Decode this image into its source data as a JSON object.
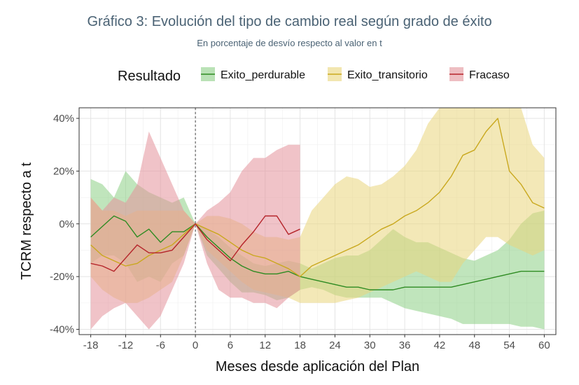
{
  "chart_data": {
    "type": "line",
    "title": "Gráfico 3: Evolución del tipo de cambio real según grado de éxito",
    "subtitle": "En porcentaje de desvío respecto al valor en t",
    "xlabel": "Meses desde aplicación del Plan",
    "ylabel": "TCRM respecto a t",
    "xlim": [
      -20,
      62
    ],
    "ylim": [
      -42,
      44
    ],
    "xticks": [
      -18,
      -12,
      -6,
      0,
      6,
      12,
      18,
      24,
      30,
      36,
      42,
      48,
      54,
      60
    ],
    "xtick_labels": [
      "-18",
      "-12",
      "-6",
      "0",
      "6",
      "12",
      "18",
      "24",
      "30",
      "36",
      "42",
      "48",
      "54",
      "60"
    ],
    "yticks": [
      -40,
      -20,
      0,
      20,
      40
    ],
    "ytick_labels": [
      "-40%",
      "-20%",
      "0%",
      "20%",
      "40%"
    ],
    "vline_x": 0,
    "legend_title": "Resultado",
    "legend_position": "top",
    "series": [
      {
        "name": "Exito_perdurable",
        "line_color": "#2e8b22",
        "band_color": "#8ccf85",
        "x": [
          -18,
          -16,
          -14,
          -12,
          -10,
          -8,
          -6,
          -4,
          -2,
          0,
          2,
          4,
          6,
          8,
          10,
          12,
          14,
          16,
          18,
          20,
          22,
          24,
          26,
          28,
          30,
          32,
          34,
          36,
          38,
          40,
          42,
          44,
          46,
          48,
          50,
          52,
          54,
          56,
          58,
          60
        ],
        "values": [
          -5,
          -1,
          3,
          1,
          -5,
          -2,
          -7,
          -3,
          -3,
          0,
          -5,
          -9,
          -13,
          -16,
          -18,
          -19,
          -19,
          -18,
          -20,
          -21,
          -22,
          -23,
          -24,
          -24,
          -25,
          -25,
          -25,
          -24,
          -24,
          -24,
          -24,
          -24,
          -23,
          -22,
          -21,
          -20,
          -19,
          -18,
          -18,
          -18
        ],
        "lower": [
          -15,
          -12,
          -12,
          -15,
          -22,
          -20,
          -22,
          -15,
          -12,
          0,
          -12,
          -17,
          -22,
          -26,
          -26,
          -27,
          -29,
          -28,
          -25,
          -24,
          -25,
          -27,
          -28,
          -28,
          -28,
          -28,
          -30,
          -32,
          -33,
          -34,
          -35,
          -36,
          -38,
          -38,
          -38,
          -38,
          -38,
          -39,
          -39,
          -40
        ],
        "upper": [
          17,
          15,
          10,
          20,
          15,
          12,
          10,
          8,
          10,
          0,
          -2,
          -5,
          -9,
          -12,
          -15,
          -16,
          -15,
          -14,
          -15,
          -17,
          -15,
          -13,
          -12,
          -12,
          -10,
          -6,
          -2,
          -5,
          -7,
          -7,
          -9,
          -11,
          -13,
          -14,
          -12,
          -10,
          -6,
          0,
          4,
          5
        ]
      },
      {
        "name": "Exito_transitorio",
        "line_color": "#c9a81e",
        "band_color": "#e9d57c",
        "x": [
          -18,
          -16,
          -14,
          -12,
          -10,
          -8,
          -6,
          -4,
          -2,
          0,
          2,
          4,
          6,
          8,
          10,
          12,
          14,
          16,
          18,
          20,
          22,
          24,
          26,
          28,
          30,
          32,
          34,
          36,
          38,
          40,
          42,
          44,
          46,
          48,
          50,
          52,
          54,
          56,
          58,
          60
        ],
        "values": [
          -8,
          -12,
          -14,
          -16,
          -15,
          -12,
          -10,
          -8,
          -4,
          0,
          -2,
          -4,
          -7,
          -10,
          -12,
          -13,
          -15,
          -17,
          -20,
          -16,
          -14,
          -12,
          -10,
          -8,
          -5,
          -2,
          0,
          3,
          5,
          8,
          12,
          18,
          26,
          28,
          35,
          40,
          20,
          15,
          8,
          6
        ],
        "lower": [
          -20,
          -25,
          -28,
          -30,
          -30,
          -28,
          -25,
          -22,
          -12,
          0,
          -10,
          -14,
          -18,
          -22,
          -25,
          -26,
          -27,
          -28,
          -30,
          -30,
          -30,
          -30,
          -29,
          -28,
          -26,
          -24,
          -22,
          -20,
          -18,
          -20,
          -22,
          -22,
          -15,
          -10,
          -5,
          -5,
          -8,
          -10,
          -12,
          -10
        ],
        "upper": [
          10,
          5,
          5,
          3,
          5,
          5,
          5,
          5,
          5,
          0,
          3,
          3,
          2,
          0,
          -3,
          -5,
          -5,
          -6,
          -5,
          5,
          10,
          15,
          18,
          17,
          14,
          15,
          18,
          22,
          28,
          38,
          44,
          44,
          44,
          44,
          44,
          44,
          44,
          44,
          30,
          25
        ]
      },
      {
        "name": "Fracaso",
        "line_color": "#b5242a",
        "band_color": "#e3929a",
        "x": [
          -18,
          -16,
          -14,
          -12,
          -10,
          -8,
          -6,
          -4,
          -2,
          0,
          2,
          4,
          6,
          8,
          10,
          12,
          14,
          16,
          18
        ],
        "values": [
          -15,
          -16,
          -18,
          -13,
          -8,
          -11,
          -11,
          -10,
          -5,
          0,
          -6,
          -10,
          -14,
          -8,
          -3,
          3,
          3,
          -4,
          -2
        ],
        "lower": [
          -40,
          -35,
          -32,
          -30,
          -35,
          -40,
          -35,
          -25,
          -15,
          0,
          -15,
          -25,
          -28,
          -28,
          -30,
          -30,
          -32,
          -28,
          -25
        ],
        "upper": [
          10,
          5,
          10,
          8,
          15,
          35,
          25,
          15,
          5,
          0,
          5,
          8,
          12,
          20,
          25,
          25,
          28,
          30,
          30
        ]
      }
    ]
  }
}
